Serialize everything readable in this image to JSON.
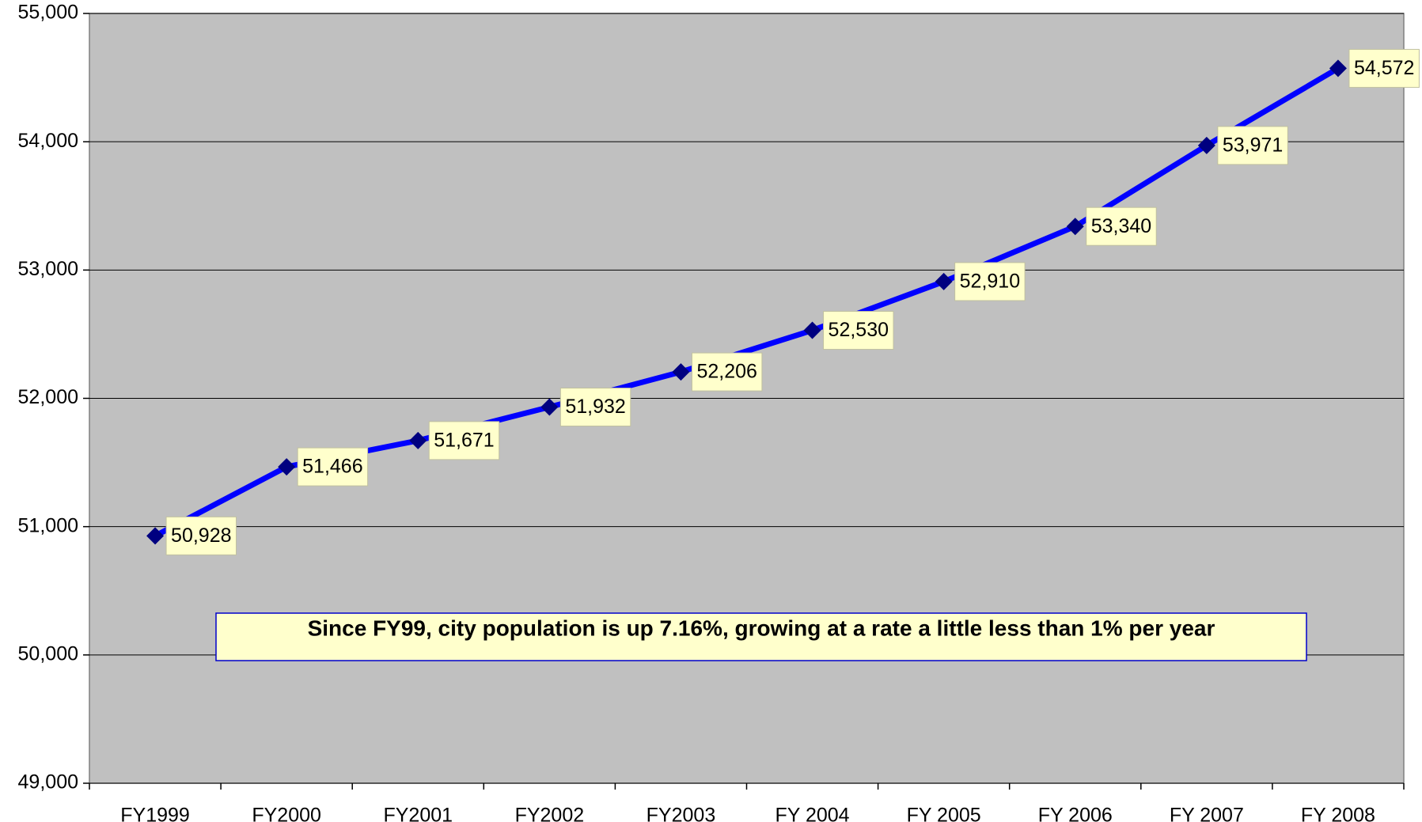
{
  "chart_data": {
    "type": "line",
    "categories": [
      "FY1999",
      "FY2000",
      "FY2001",
      "FY2002",
      "FY2003",
      "FY 2004",
      "FY 2005",
      "FY 2006",
      "FY 2007",
      "FY 2008"
    ],
    "series": [
      {
        "color": "#0000ff",
        "marker_color": "#000080",
        "values": [
          50928,
          51466,
          51671,
          51932,
          52206,
          52530,
          52910,
          53340,
          53971,
          54572
        ],
        "value_labels": [
          "50,928",
          "51,466",
          "51,671",
          "51,932",
          "52,206",
          "52,530",
          "52,910",
          "53,340",
          "53,971",
          "54,572"
        ]
      }
    ],
    "ylim": [
      49000,
      55000
    ],
    "yticks": [
      {
        "value": 49000,
        "label": "49,000"
      },
      {
        "value": 50000,
        "label": "50,000"
      },
      {
        "value": 51000,
        "label": "51,000"
      },
      {
        "value": 52000,
        "label": "52,000"
      },
      {
        "value": 53000,
        "label": "53,000"
      },
      {
        "value": 54000,
        "label": "54,000"
      },
      {
        "value": 55000,
        "label": "55,000"
      }
    ],
    "grid": true,
    "annotation": "Since FY99, city population is up 7.16%, growing at a rate a little less than 1% per year"
  }
}
